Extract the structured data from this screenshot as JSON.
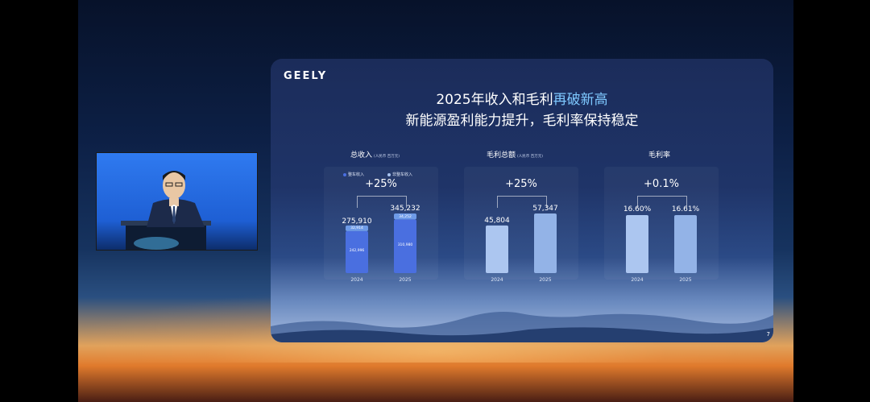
{
  "slide": {
    "logo": "GEELY",
    "title_part1": "2025年收入和毛利",
    "title_highlight": "再破新高",
    "subtitle": "新能源盈利能力提升，毛利率保持稳定",
    "page_number": "7"
  },
  "colors": {
    "accent": "#7ec8ff",
    "bar_dark": "#4a6fe0",
    "bar_light": "#a9c4f0",
    "segment": "#6e9be8"
  },
  "chart_data": [
    {
      "type": "bar",
      "title": "总收入",
      "unit_label": "(人民币 百万元)",
      "categories": [
        "2024",
        "2025"
      ],
      "legend": [
        "整车收入",
        "非整车收入"
      ],
      "series": [
        {
          "name": "整车收入",
          "values": [
            242996,
            310980
          ]
        },
        {
          "name": "非整车收入",
          "values": [
            32914,
            34252
          ]
        }
      ],
      "totals": [
        "275,910",
        "345,232"
      ],
      "segment_labels": [
        [
          "242,996",
          "32,914"
        ],
        [
          "310,980",
          "34,252"
        ]
      ],
      "growth": "+25%"
    },
    {
      "type": "bar",
      "title": "毛利总额",
      "unit_label": "(人民币 百万元)",
      "categories": [
        "2024",
        "2025"
      ],
      "values": [
        45804,
        57347
      ],
      "labels": [
        "45,804",
        "57,347"
      ],
      "growth": "+25%"
    },
    {
      "type": "bar",
      "title": "毛利率",
      "categories": [
        "2024",
        "2025"
      ],
      "values": [
        16.6,
        16.61
      ],
      "labels": [
        "16.60%",
        "16.61%"
      ],
      "growth": "+0.1%"
    }
  ]
}
